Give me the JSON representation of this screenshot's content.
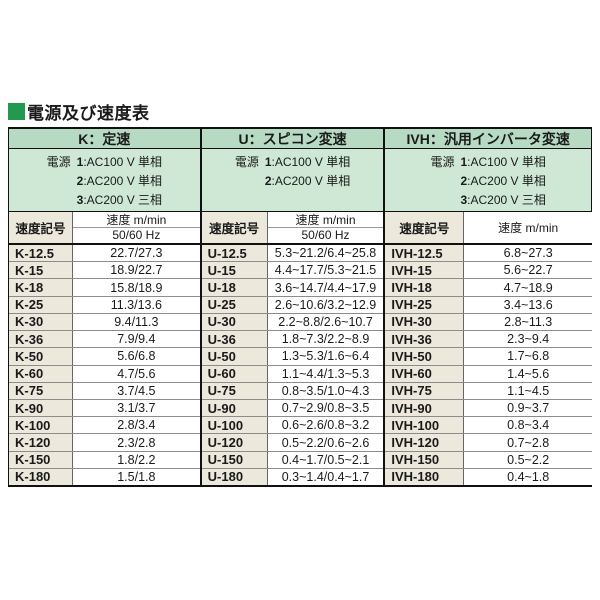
{
  "title": "電源及び速度表",
  "columns": {
    "code": "速度記号",
    "speed": "速度 m/min",
    "freq": "50/60 Hz"
  },
  "colors": {
    "header_green": "#b7dac3",
    "power_green": "#cfe8d6",
    "code_beige": "#ece8dc",
    "title_square": "#21994f"
  },
  "sections": [
    {
      "name": "K",
      "header": "K：定速",
      "power": [
        {
          "label": "電源 ",
          "num": "1",
          "rest": ":AC100 V 単相"
        },
        {
          "label": "",
          "num": "2",
          "rest": ":AC200 V 単相"
        },
        {
          "label": "",
          "num": "3",
          "rest": ":AC200 V 三相"
        }
      ],
      "rows": [
        {
          "code": "K-12.5",
          "value": "22.7/27.3"
        },
        {
          "code": "K-15",
          "value": "18.9/22.7"
        },
        {
          "code": "K-18",
          "value": "15.8/18.9"
        },
        {
          "code": "K-25",
          "value": "11.3/13.6"
        },
        {
          "code": "K-30",
          "value": "9.4/11.3"
        },
        {
          "code": "K-36",
          "value": "7.9/9.4"
        },
        {
          "code": "K-50",
          "value": "5.6/6.8"
        },
        {
          "code": "K-60",
          "value": "4.7/5.6"
        },
        {
          "code": "K-75",
          "value": "3.7/4.5"
        },
        {
          "code": "K-90",
          "value": "3.1/3.7"
        },
        {
          "code": "K-100",
          "value": "2.8/3.4"
        },
        {
          "code": "K-120",
          "value": "2.3/2.8"
        },
        {
          "code": "K-150",
          "value": "1.8/2.2"
        },
        {
          "code": "K-180",
          "value": "1.5/1.8"
        }
      ]
    },
    {
      "name": "U",
      "header": "U：スピコン変速",
      "power": [
        {
          "label": "電源 ",
          "num": "1",
          "rest": ":AC100 V 単相"
        },
        {
          "label": "",
          "num": "2",
          "rest": ":AC200 V 単相"
        }
      ],
      "rows": [
        {
          "code": "U-12.5",
          "value": "5.3~21.2/6.4~25.8"
        },
        {
          "code": "U-15",
          "value": "4.4~17.7/5.3~21.5"
        },
        {
          "code": "U-18",
          "value": "3.6~14.7/4.4~17.9"
        },
        {
          "code": "U-25",
          "value": "2.6~10.6/3.2~12.9"
        },
        {
          "code": "U-30",
          "value": "2.2~8.8/2.6~10.7"
        },
        {
          "code": "U-36",
          "value": "1.8~7.3/2.2~8.9"
        },
        {
          "code": "U-50",
          "value": "1.3~5.3/1.6~6.4"
        },
        {
          "code": "U-60",
          "value": "1.1~4.4/1.3~5.3"
        },
        {
          "code": "U-75",
          "value": "0.8~3.5/1.0~4.3"
        },
        {
          "code": "U-90",
          "value": "0.7~2.9/0.8~3.5"
        },
        {
          "code": "U-100",
          "value": "0.6~2.6/0.8~3.2"
        },
        {
          "code": "U-120",
          "value": "0.5~2.2/0.6~2.6"
        },
        {
          "code": "U-150",
          "value": "0.4~1.7/0.5~2.1"
        },
        {
          "code": "U-180",
          "value": "0.3~1.4/0.4~1.7"
        }
      ]
    },
    {
      "name": "IVH",
      "header": "IVH：汎用インバータ変速",
      "power": [
        {
          "label": "電源 ",
          "num": "1",
          "rest": ":AC100 V 単相"
        },
        {
          "label": "",
          "num": "2",
          "rest": ":AC200 V 単相"
        },
        {
          "label": "",
          "num": "3",
          "rest": ":AC200 V 三相"
        }
      ],
      "rows": [
        {
          "code": "IVH-12.5",
          "value": "6.8~27.3"
        },
        {
          "code": "IVH-15",
          "value": "5.6~22.7"
        },
        {
          "code": "IVH-18",
          "value": "4.7~18.9"
        },
        {
          "code": "IVH-25",
          "value": "3.4~13.6"
        },
        {
          "code": "IVH-30",
          "value": "2.8~11.3"
        },
        {
          "code": "IVH-36",
          "value": "2.3~9.4"
        },
        {
          "code": "IVH-50",
          "value": "1.7~6.8"
        },
        {
          "code": "IVH-60",
          "value": "1.4~5.6"
        },
        {
          "code": "IVH-75",
          "value": "1.1~4.5"
        },
        {
          "code": "IVH-90",
          "value": "0.9~3.7"
        },
        {
          "code": "IVH-100",
          "value": "0.8~3.4"
        },
        {
          "code": "IVH-120",
          "value": "0.7~2.8"
        },
        {
          "code": "IVH-150",
          "value": "0.5~2.2"
        },
        {
          "code": "IVH-180",
          "value": "0.4~1.8"
        }
      ]
    }
  ]
}
